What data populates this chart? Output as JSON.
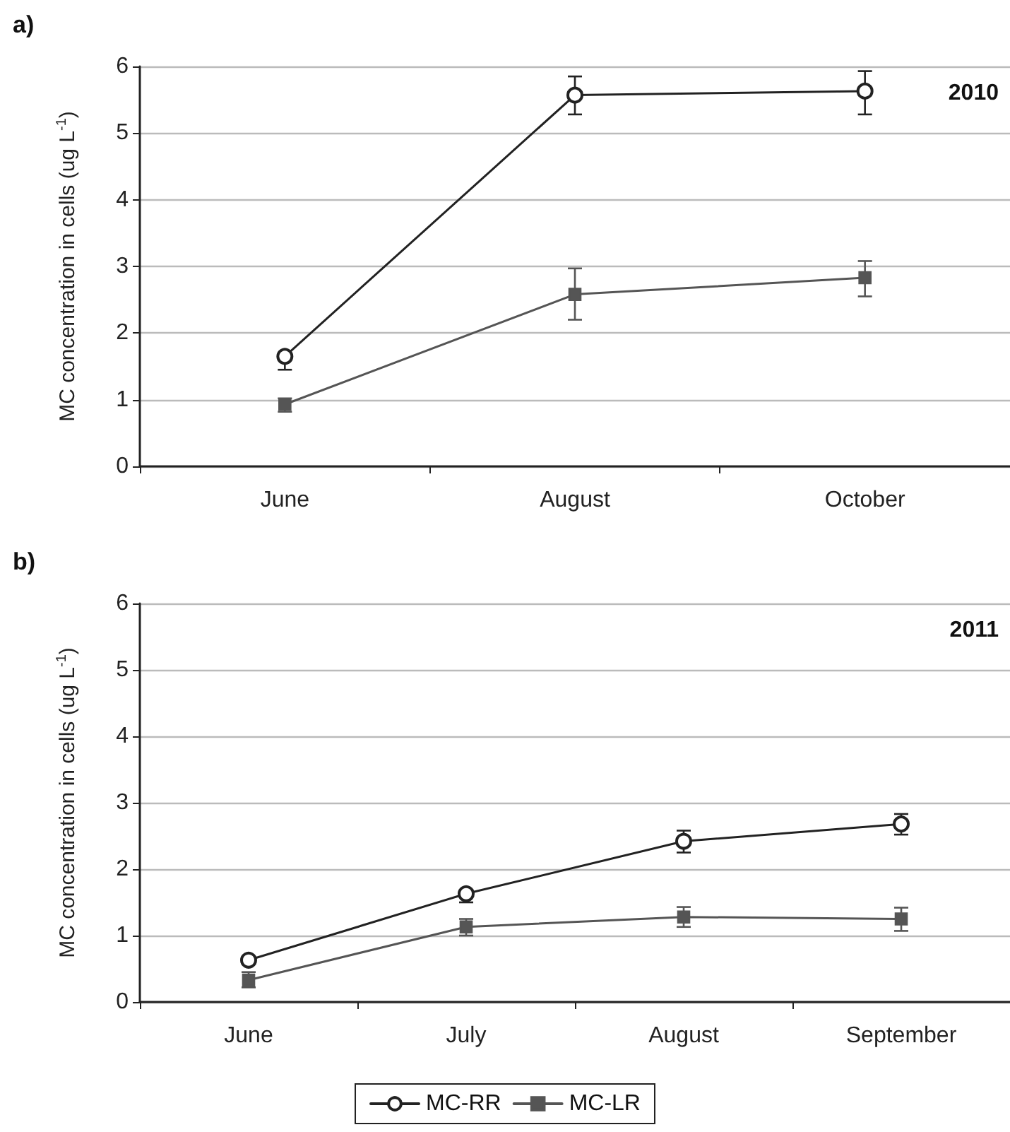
{
  "chart_data": [
    {
      "type": "line",
      "title": "a)",
      "ylabel": "MC concentration in cells (ug L$^{-1}$)",
      "annotations": [
        "2010"
      ],
      "categories": [
        "June",
        "August",
        "October"
      ],
      "ylim": [
        0,
        6
      ],
      "yticks": [
        0,
        1,
        2,
        3,
        4,
        5,
        6
      ],
      "grid": "y",
      "series": [
        {
          "color": "#222222",
          "marker": "circle",
          "values": [
            1.65,
            5.57,
            5.63
          ],
          "errors": [
            [
              1.45,
              1.65
            ],
            [
              5.28,
              5.85
            ],
            [
              5.28,
              5.93
            ]
          ]
        },
        {
          "color": "#555555",
          "marker": "square",
          "values": [
            0.93,
            2.58,
            2.83
          ],
          "errors": [
            [
              0.82,
              1.02
            ],
            [
              2.2,
              2.97
            ],
            [
              2.55,
              3.08
            ]
          ]
        }
      ]
    },
    {
      "type": "line",
      "title": "b)",
      "ylabel": "MC concentration in cells (ug L$^{-1}$)",
      "annotations": [
        "2011"
      ],
      "categories": [
        "June",
        "July",
        "August",
        "September"
      ],
      "ylim": [
        0,
        6
      ],
      "yticks": [
        0,
        1,
        2,
        3,
        4,
        5,
        6
      ],
      "grid": "y",
      "legend": "bottom",
      "series": [
        {
          "name": "MC-RR",
          "color": "#222222",
          "marker": "circle",
          "values": [
            0.63,
            1.63,
            2.42,
            2.68
          ],
          "errors": [
            null,
            [
              1.5,
              1.63
            ],
            [
              2.25,
              2.58
            ],
            [
              2.52,
              2.83
            ]
          ]
        },
        {
          "name": "MC-LR",
          "color": "#555555",
          "marker": "square",
          "values": [
            0.33,
            1.13,
            1.28,
            1.25
          ],
          "errors": [
            [
              0.22,
              0.45
            ],
            [
              1.0,
              1.25
            ],
            [
              1.13,
              1.43
            ],
            [
              1.07,
              1.42
            ]
          ]
        }
      ]
    }
  ]
}
